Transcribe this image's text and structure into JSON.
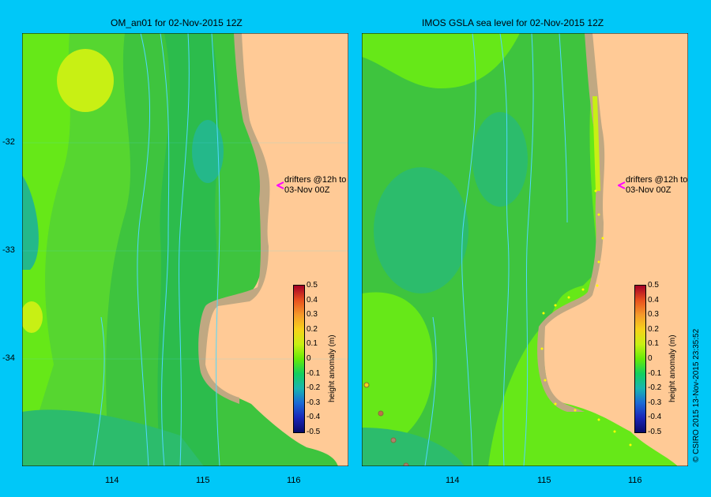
{
  "panels": [
    {
      "title": "OM_an01  for 02-Nov-2015 12Z"
    },
    {
      "title": "IMOS GSLA sea level  for 02-Nov-2015 12Z"
    }
  ],
  "axes": {
    "y_ticks": [
      "-32",
      "-33",
      "-34"
    ],
    "x_ticks": [
      "114",
      "115",
      "116"
    ]
  },
  "colorbar": {
    "title": "height anomaly (m)",
    "labels": [
      "0.5",
      "0.4",
      "0.3",
      "0.2",
      "0.1",
      "0",
      "-0.1",
      "-0.2",
      "-0.3",
      "-0.4",
      "-0.5"
    ],
    "colors": [
      "#a50026",
      "#e8501e",
      "#f59a2a",
      "#f7d21a",
      "#c8f014",
      "#66ea08",
      "#12cf5e",
      "#18b5b0",
      "#1a6ad6",
      "#1a26b8",
      "#090a6a"
    ]
  },
  "annotation": {
    "line1": "drifters @12h to",
    "line2": "03-Nov 00Z",
    "marker_color": "#ff00ff"
  },
  "credit": "© CSIRO 2015   13-Nov-2015 23:35:52",
  "colors": {
    "background": "#00c8f8",
    "land": "#ffca96",
    "shelf": "#c0a882",
    "grid": "#4fd8ff"
  }
}
